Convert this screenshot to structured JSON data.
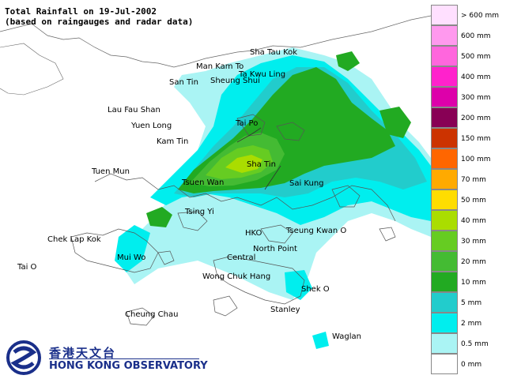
{
  "title": {
    "line1": "Total Rainfall on 19-Jul-2002",
    "line2": "(based on raingauges and radar data)"
  },
  "places": {
    "sha_tau_kok": "Sha Tau Kok",
    "man_kam_to": "Man Kam To",
    "ta_kwu_ling": "Ta Kwu Ling",
    "san_tin": "San Tin",
    "sheung_shui": "Sheung Shui",
    "lau_fau_shan": "Lau Fau Shan",
    "yuen_long": "Yuen Long",
    "tai_po": "Tai Po",
    "kam_tin": "Kam Tin",
    "sha_tin": "Sha Tin",
    "tuen_mun": "Tuen Mun",
    "tsuen_wan": "Tsuen Wan",
    "sai_kung": "Sai Kung",
    "tsing_yi": "Tsing Yi",
    "hko": "HKO",
    "tseung_kwan_o": "Tseung Kwan O",
    "chek_lap_kok": "Chek Lap Kok",
    "north_point": "North Point",
    "mui_wo": "Mui Wo",
    "central": "Central",
    "tai_o": "Tai O",
    "wong_chuk_hang": "Wong Chuk Hang",
    "shek_o": "Shek O",
    "cheung_chau": "Cheung Chau",
    "stanley": "Stanley",
    "waglan": "Waglan"
  },
  "legend": [
    {
      "label": "> 600 mm",
      "color": "#ffe0ff"
    },
    {
      "label": "600 mm",
      "color": "#ff99ee"
    },
    {
      "label": "500 mm",
      "color": "#ff66dd"
    },
    {
      "label": "400 mm",
      "color": "#ff22cc"
    },
    {
      "label": "300 mm",
      "color": "#dd00aa"
    },
    {
      "label": "200 mm",
      "color": "#880055"
    },
    {
      "label": "150 mm",
      "color": "#cc3300"
    },
    {
      "label": "100 mm",
      "color": "#ff6600"
    },
    {
      "label": "70 mm",
      "color": "#ffaa00"
    },
    {
      "label": "50 mm",
      "color": "#ffdd00"
    },
    {
      "label": "40 mm",
      "color": "#aadd00"
    },
    {
      "label": "30 mm",
      "color": "#66cc22"
    },
    {
      "label": "20 mm",
      "color": "#44bb33"
    },
    {
      "label": "10 mm",
      "color": "#22aa22"
    },
    {
      "label": "5 mm",
      "color": "#22cccc"
    },
    {
      "label": "2 mm",
      "color": "#00eeee"
    },
    {
      "label": "0.5 mm",
      "color": "#aaf4f4"
    },
    {
      "label": "0 mm",
      "color": "#ffffff"
    }
  ],
  "logo": {
    "chinese": "香港天文台",
    "english": "HONG KONG OBSERVATORY"
  }
}
